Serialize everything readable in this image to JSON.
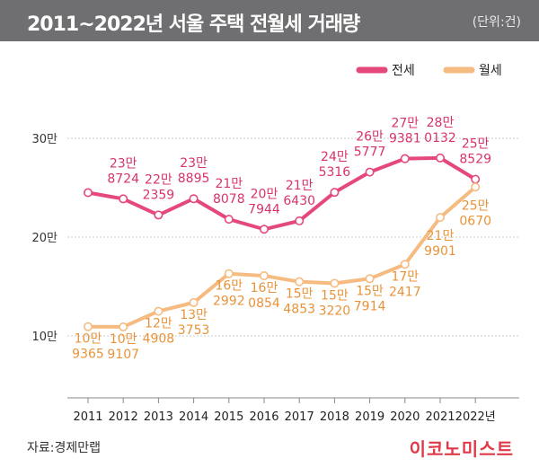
{
  "header": {
    "title": "2011~2022년 서울 주택 전월세 거래량",
    "unit": "(단위:건)"
  },
  "footer": {
    "source": "자료:경제만랩",
    "logo": "이코노미스트"
  },
  "colors": {
    "jeonse": "#e5487a",
    "wolse": "#f5bb80",
    "grid": "#cccccc",
    "axis": "#888888",
    "title_bg": "#6f6f72"
  },
  "chart_data": {
    "type": "line",
    "title": "2011~2022년 서울 주택 전월세 거래량",
    "ylabel": "(단위:건)",
    "xlabel": "",
    "categories": [
      "2011",
      "2012",
      "2013",
      "2014",
      "2015",
      "2016",
      "2017",
      "2018",
      "2019",
      "2020",
      "2021",
      "2022년"
    ],
    "y_ticks": [
      {
        "value": 100000,
        "label": "10만"
      },
      {
        "value": 200000,
        "label": "20만"
      },
      {
        "value": 300000,
        "label": "30만"
      }
    ],
    "ylim": [
      40000,
      330000
    ],
    "grid": true,
    "legend_position": "top-right",
    "series": [
      {
        "name": "전세",
        "color": "#e5487a",
        "values": [
          245000,
          238724,
          222359,
          238895,
          218078,
          207944,
          216430,
          245316,
          265777,
          279381,
          280132,
          258529
        ],
        "labels": [
          null,
          [
            "23만",
            "8724"
          ],
          [
            "22만",
            "2359"
          ],
          [
            "23만",
            "8895"
          ],
          [
            "21만",
            "8078"
          ],
          [
            "20만",
            "7944"
          ],
          [
            "21만",
            "6430"
          ],
          [
            "24만",
            "5316"
          ],
          [
            "26만",
            "5777"
          ],
          [
            "27만",
            "9381"
          ],
          [
            "28만",
            "0132"
          ],
          [
            "25만",
            "8529"
          ]
        ]
      },
      {
        "name": "월세",
        "color": "#f5bb80",
        "values": [
          109365,
          109107,
          124908,
          133753,
          162992,
          160854,
          154853,
          153220,
          157914,
          172417,
          219901,
          250670
        ],
        "labels": [
          [
            "10만",
            "9365"
          ],
          [
            "10만",
            "9107"
          ],
          [
            "12만",
            "4908"
          ],
          [
            "13만",
            "3753"
          ],
          [
            "16만",
            "2992"
          ],
          [
            "16만",
            "0854"
          ],
          [
            "15만",
            "4853"
          ],
          [
            "15만",
            "3220"
          ],
          [
            "15만",
            "7914"
          ],
          [
            "17만",
            "2417"
          ],
          [
            "21만",
            "9901"
          ],
          [
            "25만",
            "0670"
          ]
        ]
      }
    ]
  }
}
